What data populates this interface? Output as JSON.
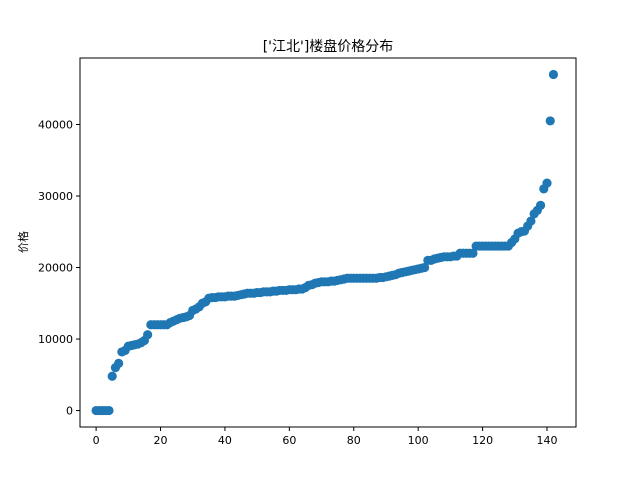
{
  "chart_data": {
    "type": "scatter",
    "title": "['江北']楼盘价格分布",
    "xlabel": "",
    "ylabel": "价格",
    "xlim": [
      -5,
      149
    ],
    "ylim": [
      -2300,
      49300
    ],
    "xticks": [
      0,
      20,
      40,
      60,
      80,
      100,
      120,
      140
    ],
    "yticks": [
      0,
      10000,
      20000,
      30000,
      40000
    ],
    "grid": false,
    "marker_color": "#1f77b4",
    "x": [
      0,
      1,
      2,
      3,
      4,
      5,
      6,
      7,
      8,
      9,
      10,
      11,
      12,
      13,
      14,
      15,
      16,
      17,
      18,
      19,
      20,
      21,
      22,
      23,
      24,
      25,
      26,
      27,
      28,
      29,
      30,
      31,
      32,
      33,
      34,
      35,
      36,
      37,
      38,
      39,
      40,
      41,
      42,
      43,
      44,
      45,
      46,
      47,
      48,
      49,
      50,
      51,
      52,
      53,
      54,
      55,
      56,
      57,
      58,
      59,
      60,
      61,
      62,
      63,
      64,
      65,
      66,
      67,
      68,
      69,
      70,
      71,
      72,
      73,
      74,
      75,
      76,
      77,
      78,
      79,
      80,
      81,
      82,
      83,
      84,
      85,
      86,
      87,
      88,
      89,
      90,
      91,
      92,
      93,
      94,
      95,
      96,
      97,
      98,
      99,
      100,
      101,
      102,
      103,
      104,
      105,
      106,
      107,
      108,
      109,
      110,
      111,
      112,
      113,
      114,
      115,
      116,
      117,
      118,
      119,
      120,
      121,
      122,
      123,
      124,
      125,
      126,
      127,
      128,
      129,
      130,
      131,
      132,
      133,
      134,
      135,
      136,
      137,
      138,
      139,
      140,
      141,
      142
    ],
    "y": [
      0,
      0,
      0,
      0,
      0,
      4800,
      6000,
      6600,
      8200,
      8400,
      9000,
      9100,
      9200,
      9300,
      9500,
      9800,
      10600,
      12000,
      12000,
      12000,
      12000,
      12000,
      12000,
      12300,
      12500,
      12700,
      12900,
      13000,
      13100,
      13300,
      14000,
      14200,
      14500,
      15000,
      15200,
      15700,
      15800,
      15800,
      15900,
      15900,
      15900,
      16000,
      16000,
      16000,
      16100,
      16200,
      16300,
      16400,
      16400,
      16400,
      16500,
      16500,
      16600,
      16600,
      16600,
      16700,
      16700,
      16800,
      16800,
      16800,
      16900,
      16900,
      16900,
      17000,
      17000,
      17200,
      17500,
      17600,
      17800,
      17900,
      18000,
      18000,
      18000,
      18100,
      18100,
      18200,
      18300,
      18400,
      18500,
      18500,
      18500,
      18500,
      18500,
      18500,
      18500,
      18500,
      18500,
      18500,
      18600,
      18600,
      18700,
      18800,
      18900,
      19000,
      19200,
      19300,
      19400,
      19500,
      19600,
      19700,
      19800,
      19900,
      20000,
      21000,
      21000,
      21200,
      21300,
      21400,
      21500,
      21500,
      21500,
      21600,
      21600,
      22000,
      22000,
      22000,
      22000,
      22000,
      23000,
      23000,
      23000,
      23000,
      23000,
      23000,
      23000,
      23000,
      23000,
      23000,
      23000,
      23500,
      24000,
      24800,
      25000,
      25100,
      25800,
      26500,
      27500,
      28000,
      28700,
      31000,
      31800,
      40500,
      47000
    ]
  }
}
